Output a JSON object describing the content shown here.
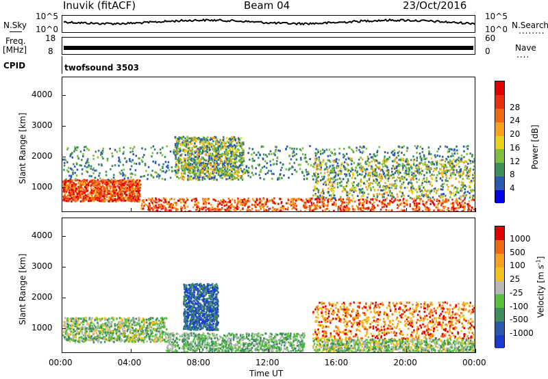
{
  "header": {
    "station": "Inuvik (fitACF)",
    "beam": "Beam 04",
    "date": "23/Oct/2016"
  },
  "top_left_labels": {
    "nsky": "N.Sky",
    "freq1": "Freq.",
    "freq2": "[MHz]",
    "cpid": "CPID",
    "nsky_ticks": [
      "10^5",
      "10^0"
    ],
    "freq_ticks": [
      "18",
      "8"
    ]
  },
  "top_right_labels": {
    "nsearch": "N.Search",
    "nsearch_dots": "........",
    "nave": "Nave",
    "nave_dots": "....",
    "nsearch_ticks": [
      "10^5",
      "10^0"
    ],
    "nave_ticks": [
      "60",
      "0"
    ]
  },
  "cpid_text": "twofsound 3503",
  "chart_data": [
    {
      "type": "heatmap",
      "title": "",
      "xlabel": "",
      "ylabel": "Slant Range [km]",
      "x_ticks": [
        "00:00",
        "04:00",
        "08:00",
        "12:00",
        "16:00",
        "20:00",
        "00:00"
      ],
      "y_ticks": [
        "1000",
        "2000",
        "3000",
        "4000"
      ],
      "ylim": [
        200,
        4600
      ],
      "colorbar": {
        "label": "Power [dB]",
        "ticks": [
          "4",
          "8",
          "12",
          "16",
          "20",
          "24",
          "28"
        ],
        "colors": [
          "#0000e6",
          "#2c59b0",
          "#3c8f5c",
          "#7fbf3f",
          "#e8d21a",
          "#f7a21b",
          "#f26a10",
          "#e83010",
          "#e00000"
        ]
      },
      "echo_regions": [
        {
          "t0": 0.0,
          "t1": 4.5,
          "r0": 600,
          "r1": 1300,
          "level": "high"
        },
        {
          "t0": 4.5,
          "t1": 24.0,
          "r0": 250,
          "r1": 700,
          "level": "high"
        },
        {
          "t0": 0.0,
          "t1": 24.0,
          "r0": 1300,
          "r1": 2400,
          "level": "low"
        },
        {
          "t0": 6.5,
          "t1": 10.5,
          "r0": 1300,
          "r1": 2700,
          "level": "mid"
        },
        {
          "t0": 14.5,
          "t1": 24.0,
          "r0": 700,
          "r1": 2000,
          "level": "mid"
        }
      ]
    },
    {
      "type": "heatmap",
      "title": "",
      "xlabel": "Time UT",
      "ylabel": "Slant Range [km]",
      "x_ticks": [
        "00:00",
        "04:00",
        "08:00",
        "12:00",
        "16:00",
        "20:00",
        "00:00"
      ],
      "y_ticks": [
        "1000",
        "2000",
        "3000",
        "4000"
      ],
      "ylim": [
        200,
        4600
      ],
      "colorbar": {
        "label": "Velocity [m s^-1]",
        "ticks": [
          "1000",
          "500",
          "100",
          "25",
          "-25",
          "-100",
          "-500",
          "-1000"
        ],
        "colors": [
          "#1a3ccc",
          "#2c59b0",
          "#3c8f5c",
          "#56c23a",
          "#b8b8b8",
          "#f2c21b",
          "#f7a21b",
          "#f26a10",
          "#e00000"
        ]
      },
      "echo_regions": [
        {
          "t0": 0.0,
          "t1": 6.0,
          "r0": 600,
          "r1": 1400,
          "level": "green"
        },
        {
          "t0": 6.0,
          "t1": 14.0,
          "r0": 250,
          "r1": 900,
          "level": "darkgreen"
        },
        {
          "t0": 7.0,
          "t1": 9.0,
          "r0": 1000,
          "r1": 2500,
          "level": "blue"
        },
        {
          "t0": 14.5,
          "t1": 24.0,
          "r0": 700,
          "r1": 1900,
          "level": "orange"
        },
        {
          "t0": 14.5,
          "t1": 24.0,
          "r0": 250,
          "r1": 700,
          "level": "green"
        }
      ]
    }
  ]
}
